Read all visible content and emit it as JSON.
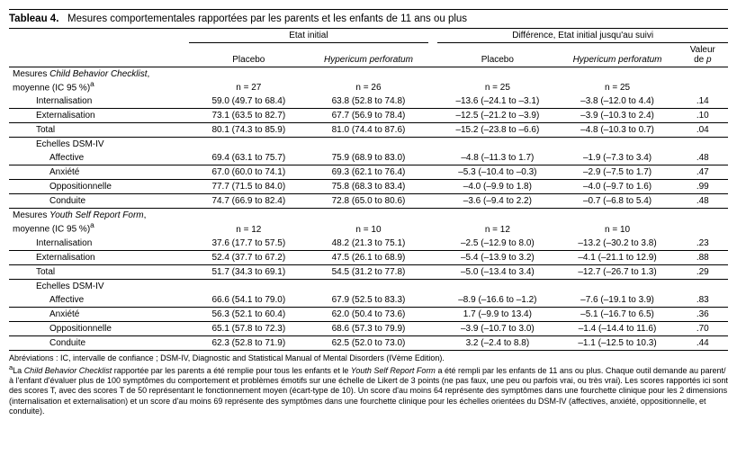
{
  "title_prefix": "Tableau 4.",
  "title_rest": "Mesures comportementales rapportées par les parents et les enfants de 11 ans ou plus",
  "group_headers": {
    "baseline": "Etat initial",
    "diff": "Différence, Etat initial jusqu'au suivi"
  },
  "col_headers": {
    "placebo": "Placebo",
    "hyper": "Hypericum perforatum",
    "pval": "Valeur de p"
  },
  "italic_hyper": "Hypericum perforatum",
  "n_labels": {
    "b_plc": "n = 27",
    "b_hyp": "n = 26",
    "d_plc": "n = 25",
    "d_hyp": "n = 25"
  },
  "cbc_header_pre": "Mesures ",
  "cbc_header_it": "Child Behavior Checklist",
  "cbc_header_post": ", moyenne (IC 95 %)",
  "rows_cbc": [
    {
      "name": "Internalisation",
      "b_plc": "59.0 (49.7 to 68.4)",
      "b_hyp": "63.8 (52.8 to 74.8)",
      "d_plc": "–13.6 (–24.1 to –3.1)",
      "d_hyp": "–3.8 (–12.0 to 4.4)",
      "p": ".14"
    },
    {
      "name": "Externalisation",
      "b_plc": "73.1 (63.5 to 82.7)",
      "b_hyp": "67.7 (56.9 to 78.4)",
      "d_plc": "–12.5 (–21.2 to –3.9)",
      "d_hyp": "–3.9 (–10.3 to 2.4)",
      "p": ".10"
    },
    {
      "name": "Total",
      "b_plc": "80.1 (74.3 to 85.9)",
      "b_hyp": "81.0 (74.4 to 87.6)",
      "d_plc": "–15.2 (–23.8 to –6.6)",
      "d_hyp": "–4.8 (–10.3 to 0.7)",
      "p": ".04"
    }
  ],
  "dsm_header": "Echelles DSM-IV",
  "rows_cbc_dsm": [
    {
      "name": "Affective",
      "b_plc": "69.4 (63.1 to 75.7)",
      "b_hyp": "75.9 (68.9 to 83.0)",
      "d_plc": "–4.8 (–11.3 to 1.7)",
      "d_hyp": "–1.9 (–7.3 to 3.4)",
      "p": ".48"
    },
    {
      "name": "Anxiété",
      "b_plc": "67.0 (60.0 to 74.1)",
      "b_hyp": "69.3 (62.1 to 76.4)",
      "d_plc": "–5.3 (–10.4 to –0.3)",
      "d_hyp": "–2.9 (–7.5 to 1.7)",
      "p": ".47"
    },
    {
      "name": "Oppositionnelle",
      "b_plc": "77.7 (71.5 to 84.0)",
      "b_hyp": "75.8 (68.3 to 83.4)",
      "d_plc": "–4.0 (–9.9 to 1.8)",
      "d_hyp": "–4.0 (–9.7 to 1.6)",
      "p": ".99"
    },
    {
      "name": "Conduite",
      "b_plc": "74.7 (66.9 to 82.4)",
      "b_hyp": "72.8 (65.0 to 80.6)",
      "d_plc": "–3.6 (–9.4 to 2.2)",
      "d_hyp": "–0.7 (–6.8 to 5.4)",
      "p": ".48"
    }
  ],
  "ysr_header_pre": "Mesures ",
  "ysr_header_it": "Youth Self Report Form",
  "ysr_header_post": ", moyenne (IC 95 %)",
  "n_labels_ysr": {
    "b_plc": "n = 12",
    "b_hyp": "n = 10",
    "d_plc": "n = 12",
    "d_hyp": "n = 10"
  },
  "rows_ysr": [
    {
      "name": "Internalisation",
      "b_plc": "37.6 (17.7 to 57.5)",
      "b_hyp": "48.2 (21.3 to 75.1)",
      "d_plc": "–2.5 (–12.9 to 8.0)",
      "d_hyp": "–13.2 (–30.2 to 3.8)",
      "p": ".23"
    },
    {
      "name": "Externalisation",
      "b_plc": "52.4 (37.7 to 67.2)",
      "b_hyp": "47.5 (26.1 to 68.9)",
      "d_plc": "–5.4 (–13.9 to 3.2)",
      "d_hyp": "–4.1 (–21.1 to 12.9)",
      "p": ".88"
    },
    {
      "name": "Total",
      "b_plc": "51.7 (34.3 to 69.1)",
      "b_hyp": "54.5 (31.2 to 77.8)",
      "d_plc": "–5.0 (–13.4 to 3.4)",
      "d_hyp": "–12.7 (–26.7 to 1.3)",
      "p": ".29"
    }
  ],
  "rows_ysr_dsm": [
    {
      "name": "Affective",
      "b_plc": "66.6 (54.1 to 79.0)",
      "b_hyp": "67.9 (52.5 to 83.3)",
      "d_plc": "–8.9 (–16.6 to –1.2)",
      "d_hyp": "–7.6 (–19.1 to 3.9)",
      "p": ".83"
    },
    {
      "name": "Anxiété",
      "b_plc": "56.3 (52.1 to 60.4)",
      "b_hyp": "62.0 (50.4 to 73.6)",
      "d_plc": "1.7 (–9.9 to 13.4)",
      "d_hyp": "–5.1 (–16.7 to 6.5)",
      "p": ".36"
    },
    {
      "name": "Oppositionnelle",
      "b_plc": "65.1 (57.8 to 72.3)",
      "b_hyp": "68.6 (57.3 to 79.9)",
      "d_plc": "–3.9 (–10.7 to 3.0)",
      "d_hyp": "–1.4 (–14.4 to 11.6)",
      "p": ".70"
    },
    {
      "name": "Conduite",
      "b_plc": "62.3 (52.8 to 71.9)",
      "b_hyp": "62.5 (52.0 to 73.0)",
      "d_plc": "3.2 (–2.4 to 8.8)",
      "d_hyp": "–1.1 (–12.5 to 10.3)",
      "p": ".44"
    }
  ],
  "footnotes": {
    "abbr": "Abréviations : IC, intervalle de confiance ; DSM-IV, Diagnostic and Statistical Manual of Mental Disorders (IVème Edition).",
    "a_pre": "La ",
    "a_it1": "Child Behavior Checklist",
    "a_mid": " rapportée par les parents a été remplie pour tous les enfants et le ",
    "a_it2": "Youth Self Report Form",
    "a_post": " a été rempli par les enfants de 11 ans ou plus. Chaque outil demande au parent/à l'enfant d'évaluer plus de 100 symptômes du comportement et problèmes émotifs sur une échelle de Likert de 3 points (ne pas faux, une peu ou parfois vrai, ou très vrai). Les scores rapportés ici sont des scores T, avec des scores T de 50 représentant le fonctionnement moyen (écart-type de 10). Un score d'au moins 64 représente des symptômes dans une fourchette clinique pour les 2 dimensions (internalisation et externalisation) et un score d'au moins 69 représente des symptômes dans une fourchette clinique pour les échelles orientées du DSM-IV (affectives, anxiété, oppositionnelle, et conduite).",
    "sup": "a"
  }
}
